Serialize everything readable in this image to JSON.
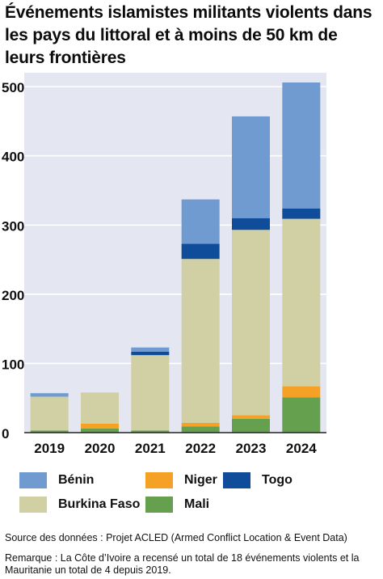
{
  "title": "Événements islamistes militants violents dans les pays du littoral et à moins de 50 km de leurs frontières",
  "colors": {
    "Bénin": "#6f9bd1",
    "Niger": "#f5a126",
    "Togo": "#0f4d9a",
    "Burkina Faso": "#d1cfa4",
    "Mali": "#65a04f",
    "plot_background": "#e4e6f2",
    "gridline": "#ffffff"
  },
  "legend": {
    "items": [
      {
        "label": "Bénin"
      },
      {
        "label": "Niger"
      },
      {
        "label": "Togo"
      },
      {
        "label": "Burkina Faso"
      },
      {
        "label": "Mali"
      }
    ]
  },
  "chart_data": {
    "type": "bar",
    "stacked": true,
    "categories": [
      "2019",
      "2020",
      "2021",
      "2022",
      "2023",
      "2024"
    ],
    "series": [
      {
        "name": "Mali",
        "values": [
          3,
          6,
          3,
          9,
          20,
          51
        ]
      },
      {
        "name": "Niger",
        "values": [
          0,
          7,
          0,
          5,
          5,
          16
        ]
      },
      {
        "name": "Burkina Faso",
        "values": [
          49,
          45,
          109,
          237,
          268,
          242
        ]
      },
      {
        "name": "Togo",
        "values": [
          0,
          0,
          5,
          22,
          17,
          15
        ]
      },
      {
        "name": "Bénin",
        "values": [
          5,
          0,
          6,
          64,
          147,
          182
        ]
      }
    ],
    "y_ticks": [
      "0",
      "100",
      "200",
      "300",
      "400",
      "500"
    ],
    "ylim": [
      0,
      520
    ],
    "grid": true,
    "legend_position": "bottom"
  },
  "footer": {
    "source": "Source des données : Projet ACLED (Armed Conflict Location & Event Data)",
    "remark": "Remarque : La Côte d’Ivoire a recensé un total de 18 événements violents et la Mauritanie un total de 4 depuis 2019."
  }
}
